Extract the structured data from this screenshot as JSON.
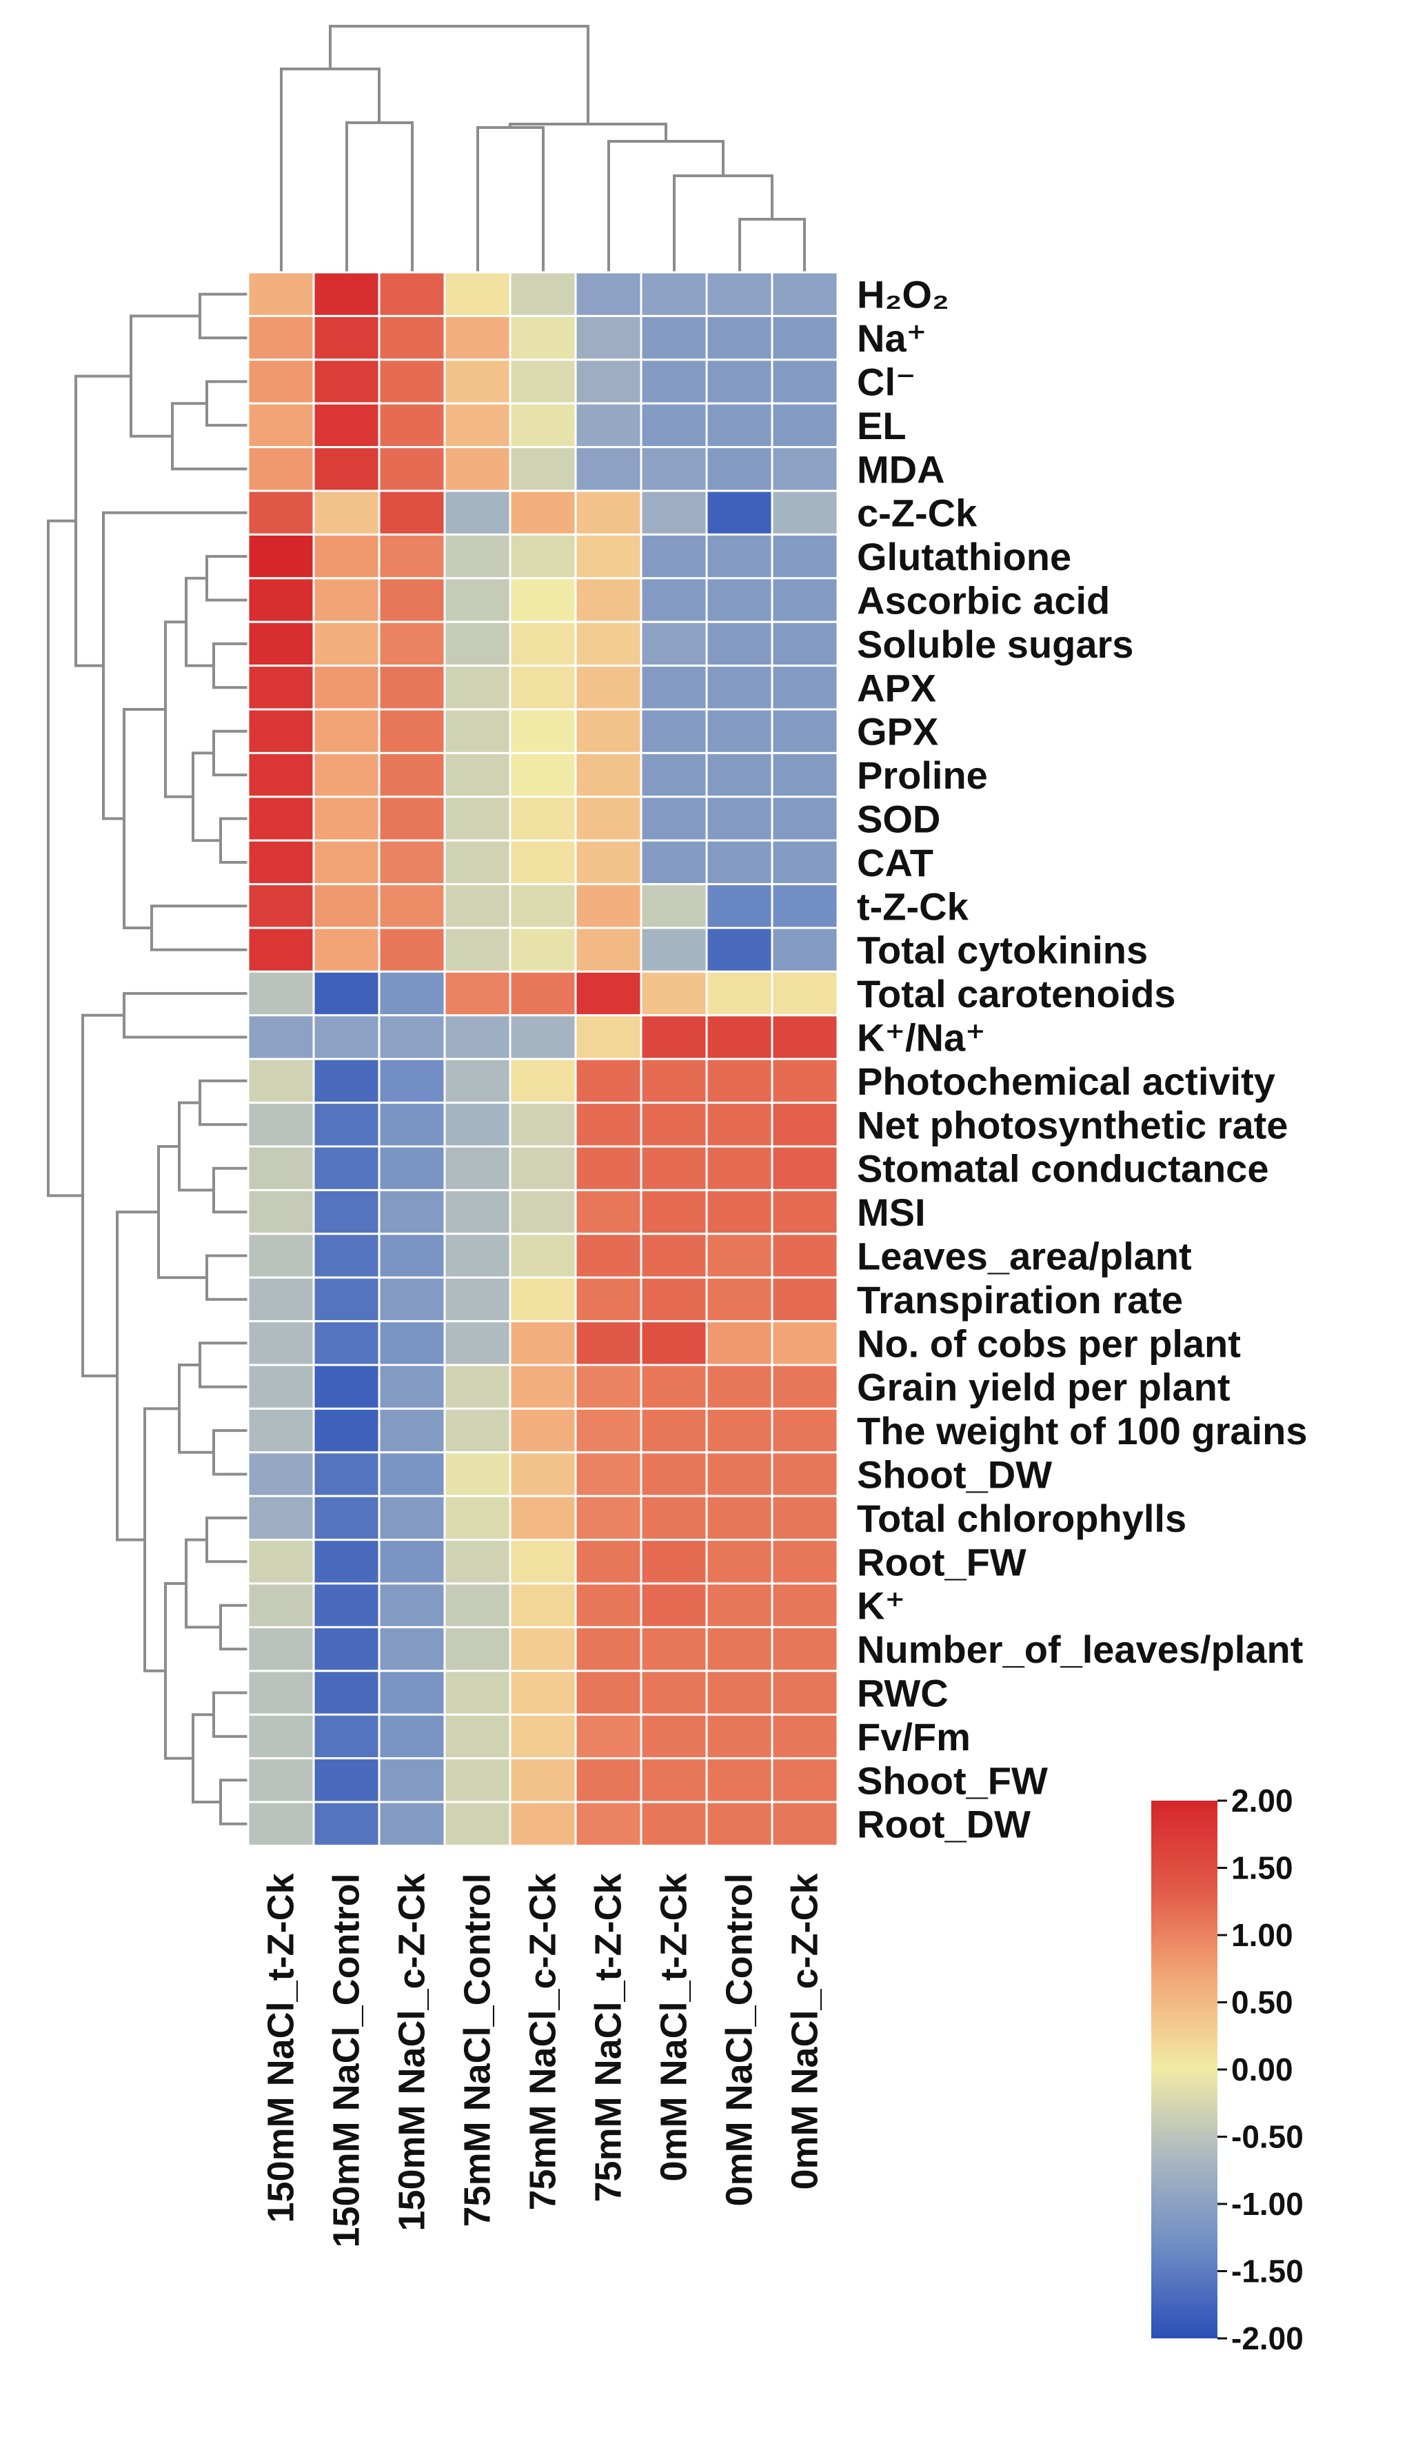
{
  "chart_data": {
    "type": "heatmap",
    "title": "",
    "xlabel": "",
    "ylabel": "",
    "columns": [
      "150mM NaCl_t-Z-Ck",
      "150mM NaCl_Control",
      "150mM NaCl_c-Z-Ck",
      "75mM NaCl_Control",
      "75mM NaCl_c-Z-Ck",
      "75mM NaCl_t-Z-Ck",
      "0mM NaCl_t-Z-Ck",
      "0mM NaCl_Control",
      "0mM NaCl_c-Z-Ck"
    ],
    "rows": [
      "H₂O₂",
      "Na⁺",
      "Cl⁻",
      "EL",
      "MDA",
      "c-Z-Ck",
      "Glutathione",
      "Ascorbic acid",
      "Soluble sugars",
      "APX",
      "GPX",
      "Proline",
      "SOD",
      "CAT",
      "t-Z-Ck",
      "Total cytokinins",
      "Total carotenoids",
      "K⁺/Na⁺",
      "Photochemical activity",
      "Net photosynthetic rate",
      "Stomatal conductance",
      "MSI",
      "Leaves_area/plant",
      "Transpiration rate",
      "No. of cobs per plant",
      "Grain yield per plant",
      "The weight of 100 grains",
      "Shoot_DW",
      "Total chlorophylls",
      "Root_FW",
      "K⁺",
      "Number_of_leaves/plant",
      "RWC",
      "Fv/Fm",
      "Shoot_FW",
      "Root_DW"
    ],
    "values": [
      [
        0.6,
        1.9,
        1.3,
        0.1,
        -0.3,
        -1.0,
        -1.0,
        -1.0,
        -1.0
      ],
      [
        0.8,
        1.7,
        1.2,
        0.6,
        -0.1,
        -0.8,
        -1.1,
        -1.1,
        -1.1
      ],
      [
        0.8,
        1.7,
        1.2,
        0.4,
        -0.2,
        -0.8,
        -1.1,
        -1.1,
        -1.1
      ],
      [
        0.7,
        1.8,
        1.2,
        0.5,
        -0.1,
        -0.9,
        -1.1,
        -1.1,
        -1.1
      ],
      [
        0.8,
        1.7,
        1.2,
        0.6,
        -0.3,
        -1.0,
        -1.0,
        -1.1,
        -1.0
      ],
      [
        1.4,
        0.4,
        1.5,
        -0.7,
        0.6,
        0.4,
        -0.8,
        -1.8,
        -0.7
      ],
      [
        2.0,
        0.8,
        1.0,
        -0.4,
        -0.2,
        0.3,
        -1.1,
        -1.1,
        -1.1
      ],
      [
        1.9,
        0.7,
        1.1,
        -0.4,
        0.0,
        0.4,
        -1.1,
        -1.1,
        -1.1
      ],
      [
        1.9,
        0.6,
        1.0,
        -0.4,
        0.1,
        0.3,
        -1.0,
        -1.1,
        -1.1
      ],
      [
        1.8,
        0.8,
        1.1,
        -0.3,
        0.1,
        0.4,
        -1.1,
        -1.1,
        -1.1
      ],
      [
        1.8,
        0.7,
        1.1,
        -0.3,
        0.0,
        0.4,
        -1.1,
        -1.1,
        -1.1
      ],
      [
        1.8,
        0.7,
        1.1,
        -0.3,
        0.0,
        0.4,
        -1.1,
        -1.1,
        -1.1
      ],
      [
        1.8,
        0.7,
        1.1,
        -0.3,
        0.1,
        0.4,
        -1.1,
        -1.1,
        -1.1
      ],
      [
        1.8,
        0.7,
        1.0,
        -0.3,
        0.1,
        0.4,
        -1.1,
        -1.1,
        -1.1
      ],
      [
        1.7,
        0.8,
        0.9,
        -0.3,
        -0.2,
        0.6,
        -0.4,
        -1.4,
        -1.3
      ],
      [
        1.8,
        0.7,
        1.1,
        -0.3,
        -0.1,
        0.5,
        -0.7,
        -1.7,
        -1.1
      ],
      [
        -0.5,
        -1.8,
        -1.2,
        1.0,
        1.1,
        1.8,
        0.4,
        0.1,
        0.1
      ],
      [
        -1.0,
        -1.0,
        -1.0,
        -0.8,
        -0.7,
        0.2,
        1.6,
        1.6,
        1.6
      ],
      [
        -0.3,
        -1.7,
        -1.3,
        -0.6,
        0.1,
        1.2,
        1.2,
        1.2,
        1.2
      ],
      [
        -0.5,
        -1.6,
        -1.2,
        -0.7,
        -0.3,
        1.2,
        1.2,
        1.2,
        1.3
      ],
      [
        -0.4,
        -1.6,
        -1.2,
        -0.6,
        -0.3,
        1.2,
        1.2,
        1.2,
        1.3
      ],
      [
        -0.4,
        -1.6,
        -1.1,
        -0.6,
        -0.3,
        1.1,
        1.2,
        1.2,
        1.2
      ],
      [
        -0.5,
        -1.6,
        -1.2,
        -0.6,
        -0.2,
        1.2,
        1.2,
        1.1,
        1.2
      ],
      [
        -0.6,
        -1.6,
        -1.1,
        -0.6,
        0.1,
        1.1,
        1.2,
        1.1,
        1.2
      ],
      [
        -0.6,
        -1.6,
        -1.2,
        -0.6,
        0.6,
        1.4,
        1.5,
        0.8,
        0.7
      ],
      [
        -0.6,
        -1.8,
        -1.1,
        -0.3,
        0.6,
        1.0,
        1.1,
        1.1,
        1.1
      ],
      [
        -0.6,
        -1.8,
        -1.1,
        -0.3,
        0.6,
        1.0,
        1.1,
        1.1,
        1.1
      ],
      [
        -0.9,
        -1.6,
        -1.2,
        -0.1,
        0.4,
        1.0,
        1.1,
        1.1,
        1.1
      ],
      [
        -0.8,
        -1.6,
        -1.1,
        -0.2,
        0.5,
        1.0,
        1.1,
        1.1,
        1.1
      ],
      [
        -0.3,
        -1.7,
        -1.2,
        -0.3,
        0.1,
        1.1,
        1.2,
        1.1,
        1.1
      ],
      [
        -0.4,
        -1.7,
        -1.1,
        -0.4,
        0.2,
        1.1,
        1.2,
        1.1,
        1.1
      ],
      [
        -0.5,
        -1.7,
        -1.1,
        -0.4,
        0.3,
        1.1,
        1.1,
        1.1,
        1.1
      ],
      [
        -0.5,
        -1.7,
        -1.2,
        -0.3,
        0.3,
        1.1,
        1.1,
        1.1,
        1.1
      ],
      [
        -0.5,
        -1.6,
        -1.2,
        -0.3,
        0.3,
        1.0,
        1.1,
        1.1,
        1.1
      ],
      [
        -0.5,
        -1.7,
        -1.1,
        -0.3,
        0.4,
        1.1,
        1.1,
        1.1,
        1.1
      ],
      [
        -0.5,
        -1.6,
        -1.1,
        -0.3,
        0.5,
        1.0,
        1.1,
        1.1,
        1.1
      ]
    ],
    "color_scale": {
      "min": -2.0,
      "max": 2.0,
      "ticks": [
        "2.00",
        "1.50",
        "1.00",
        "0.50",
        "0.00",
        "-0.50",
        "-1.00",
        "-1.50",
        "-2.00"
      ],
      "colors": [
        "#2b4fb8",
        "#6f8cc4",
        "#a8b6c2",
        "#f1eaa6",
        "#f3a878",
        "#e25c4a",
        "#d6262a"
      ]
    },
    "column_dendrogram": true,
    "row_dendrogram": true,
    "grid": true
  }
}
